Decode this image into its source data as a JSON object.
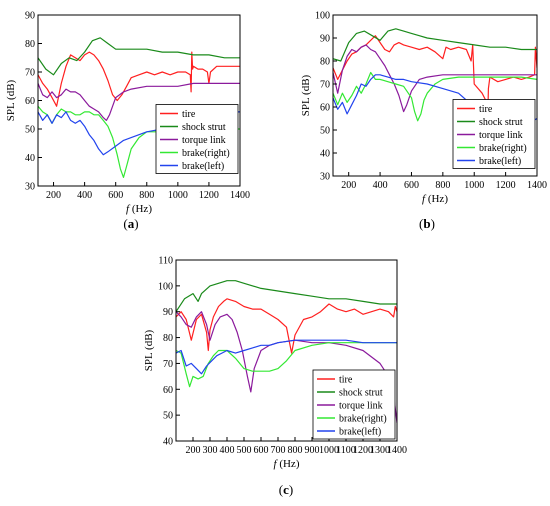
{
  "chart_data": [
    {
      "panel_label": "(a)",
      "type": "line",
      "xlabel_italic": "f",
      "xlabel_unit": " (Hz)",
      "ylabel": "SPL (dB)",
      "xlim": [
        100,
        1400
      ],
      "ylim": [
        30,
        90
      ],
      "xticks": [
        200,
        400,
        600,
        800,
        1000,
        1200,
        1400
      ],
      "yticks": [
        30,
        40,
        50,
        60,
        70,
        80,
        90
      ],
      "grid": false,
      "legend_position": "middle-right",
      "series": [
        {
          "name": "tire",
          "color": "#ff2020",
          "x": [
            100,
            130,
            160,
            190,
            220,
            250,
            280,
            310,
            340,
            370,
            400,
            430,
            460,
            490,
            520,
            550,
            580,
            610,
            640,
            670,
            700,
            750,
            800,
            850,
            900,
            950,
            1000,
            1050,
            1080,
            1085,
            1090,
            1095,
            1100,
            1130,
            1160,
            1190,
            1200,
            1210,
            1250,
            1300,
            1350,
            1400
          ],
          "y": [
            69,
            66,
            64,
            61,
            58,
            66,
            72,
            76,
            75,
            74,
            76,
            77,
            76,
            74,
            71,
            67,
            62,
            60,
            62,
            65,
            68,
            69,
            70,
            69,
            70,
            69,
            70,
            70,
            69,
            63,
            77,
            71,
            72,
            71,
            71,
            70,
            66,
            70,
            72,
            72,
            72,
            72
          ]
        },
        {
          "name": "shock strut",
          "color": "#1a8a1a",
          "x": [
            100,
            150,
            200,
            250,
            300,
            350,
            400,
            450,
            500,
            550,
            600,
            650,
            700,
            800,
            900,
            1000,
            1100,
            1200,
            1300,
            1400
          ],
          "y": [
            75,
            71,
            69,
            73,
            75,
            74,
            77,
            81,
            82,
            80,
            78,
            78,
            78,
            78,
            77,
            77,
            76,
            76,
            75,
            75
          ]
        },
        {
          "name": "torque link",
          "color": "#8b1a9c",
          "x": [
            100,
            130,
            160,
            190,
            220,
            250,
            280,
            310,
            340,
            370,
            400,
            430,
            460,
            490,
            520,
            540,
            560,
            580,
            600,
            650,
            700,
            800,
            900,
            1000,
            1100,
            1200,
            1300,
            1400
          ],
          "y": [
            66,
            62,
            61,
            63,
            61,
            62,
            64,
            63,
            63,
            62,
            60,
            58,
            57,
            56,
            54,
            53,
            55,
            58,
            61,
            63,
            64,
            65,
            65,
            65,
            66,
            66,
            66,
            66
          ]
        },
        {
          "name": "brake(right)",
          "color": "#33e833",
          "x": [
            100,
            130,
            160,
            190,
            220,
            250,
            280,
            310,
            340,
            370,
            400,
            430,
            460,
            490,
            520,
            550,
            580,
            610,
            630,
            650,
            670,
            700,
            750,
            800,
            900,
            1000,
            1100,
            1200,
            1300,
            1400
          ],
          "y": [
            58,
            56,
            55,
            52,
            55,
            57,
            56,
            56,
            55,
            55,
            56,
            56,
            55,
            55,
            53,
            51,
            47,
            41,
            36,
            33,
            37,
            43,
            47,
            49,
            49,
            49,
            49,
            49,
            50,
            50
          ]
        },
        {
          "name": "brake(left)",
          "color": "#2244ee",
          "x": [
            100,
            130,
            160,
            190,
            220,
            250,
            280,
            310,
            340,
            370,
            400,
            430,
            460,
            490,
            520,
            550,
            600,
            650,
            700,
            800,
            900,
            1000,
            1100,
            1200,
            1300,
            1400
          ],
          "y": [
            56,
            53,
            55,
            52,
            55,
            54,
            56,
            53,
            52,
            53,
            51,
            48,
            46,
            43,
            41,
            42,
            44,
            46,
            47,
            49,
            50,
            52,
            54,
            55,
            56,
            56
          ]
        }
      ]
    },
    {
      "panel_label": "(b)",
      "type": "line",
      "xlabel_italic": "f",
      "xlabel_unit": " (Hz)",
      "ylabel": "SPL (dB)",
      "xlim": [
        100,
        1400
      ],
      "ylim": [
        30,
        100
      ],
      "xticks": [
        200,
        400,
        600,
        800,
        1000,
        1200,
        1400
      ],
      "yticks": [
        30,
        40,
        50,
        60,
        70,
        80,
        90,
        100
      ],
      "grid": false,
      "legend_position": "middle-right",
      "series": [
        {
          "name": "tire",
          "color": "#ff2020",
          "x": [
            100,
            130,
            160,
            190,
            220,
            250,
            280,
            310,
            340,
            370,
            400,
            430,
            460,
            490,
            520,
            550,
            600,
            650,
            700,
            750,
            800,
            820,
            850,
            900,
            950,
            980,
            990,
            1000,
            1050,
            1080,
            1085,
            1090,
            1100,
            1150,
            1200,
            1250,
            1300,
            1350,
            1385,
            1390,
            1400
          ],
          "y": [
            77,
            72,
            76,
            80,
            83,
            84,
            86,
            87,
            89,
            91,
            88,
            85,
            84,
            87,
            88,
            87,
            86,
            85,
            86,
            84,
            81,
            86,
            85,
            86,
            85,
            80,
            87,
            70,
            66,
            62,
            52,
            68,
            73,
            71,
            72,
            73,
            72,
            73,
            74,
            86,
            77
          ]
        },
        {
          "name": "shock strut",
          "color": "#1a8a1a",
          "x": [
            100,
            150,
            200,
            250,
            300,
            350,
            400,
            450,
            500,
            550,
            600,
            650,
            700,
            800,
            900,
            1000,
            1100,
            1200,
            1300,
            1400
          ],
          "y": [
            81,
            80,
            88,
            92,
            93,
            91,
            89,
            93,
            94,
            93,
            92,
            91,
            90,
            89,
            88,
            87,
            86,
            86,
            85,
            85
          ]
        },
        {
          "name": "torque link",
          "color": "#8b1a9c",
          "x": [
            100,
            130,
            160,
            190,
            220,
            250,
            280,
            310,
            340,
            370,
            400,
            430,
            460,
            490,
            520,
            550,
            570,
            600,
            650,
            700,
            800,
            900,
            1000,
            1100,
            1200,
            1300,
            1400
          ],
          "y": [
            75,
            66,
            76,
            82,
            85,
            84,
            86,
            87,
            85,
            84,
            81,
            78,
            74,
            70,
            65,
            58,
            61,
            67,
            72,
            73,
            74,
            74,
            74,
            74,
            74,
            74,
            74
          ]
        },
        {
          "name": "brake(right)",
          "color": "#33e833",
          "x": [
            100,
            130,
            160,
            190,
            220,
            250,
            280,
            310,
            340,
            370,
            400,
            450,
            500,
            550,
            600,
            620,
            640,
            660,
            680,
            700,
            750,
            800,
            900,
            1000,
            1100,
            1200,
            1300,
            1400
          ],
          "y": [
            66,
            61,
            66,
            62,
            65,
            69,
            66,
            70,
            75,
            72,
            72,
            71,
            70,
            69,
            64,
            58,
            54,
            57,
            63,
            66,
            70,
            72,
            73,
            73,
            73,
            73,
            73,
            72
          ]
        },
        {
          "name": "brake(left)",
          "color": "#2244ee",
          "x": [
            100,
            130,
            160,
            190,
            220,
            250,
            280,
            310,
            340,
            370,
            400,
            450,
            500,
            550,
            600,
            700,
            800,
            900,
            1000,
            1100,
            1200,
            1250,
            1300,
            1350,
            1400
          ],
          "y": [
            64,
            59,
            62,
            57,
            61,
            65,
            70,
            69,
            72,
            74,
            74,
            73,
            72,
            72,
            71,
            70,
            68,
            66,
            60,
            55,
            50,
            49,
            51,
            53,
            55
          ]
        }
      ]
    },
    {
      "panel_label": "(c)",
      "type": "line",
      "xlabel_italic": "f",
      "xlabel_unit": " (Hz)",
      "ylabel": "SPL (dB)",
      "xlim": [
        100,
        1400
      ],
      "ylim": [
        40,
        110
      ],
      "xticks": [
        200,
        300,
        400,
        500,
        600,
        700,
        800,
        900,
        1000,
        1100,
        1200,
        1300,
        1400
      ],
      "yticks": [
        40,
        50,
        60,
        70,
        80,
        90,
        100,
        110
      ],
      "grid": false,
      "legend_position": "bottom-right",
      "series": [
        {
          "name": "tire",
          "color": "#ff2020",
          "x": [
            100,
            130,
            160,
            190,
            220,
            250,
            280,
            290,
            300,
            320,
            350,
            380,
            400,
            450,
            500,
            550,
            600,
            650,
            700,
            750,
            780,
            800,
            850,
            900,
            950,
            1000,
            1050,
            1100,
            1150,
            1200,
            1250,
            1300,
            1350,
            1380,
            1390,
            1400
          ],
          "y": [
            88,
            90,
            87,
            79,
            87,
            89,
            82,
            75,
            83,
            88,
            92,
            94,
            95,
            94,
            92,
            91,
            91,
            89,
            87,
            84,
            74,
            81,
            87,
            88,
            90,
            93,
            91,
            90,
            91,
            89,
            90,
            91,
            90,
            88,
            92,
            90
          ]
        },
        {
          "name": "shock strut",
          "color": "#1a8a1a",
          "x": [
            100,
            150,
            200,
            230,
            250,
            300,
            350,
            400,
            450,
            500,
            600,
            700,
            800,
            900,
            1000,
            1100,
            1200,
            1300,
            1400
          ],
          "y": [
            90,
            95,
            97,
            94,
            97,
            100,
            101,
            102,
            102,
            101,
            99,
            98,
            97,
            96,
            95,
            95,
            94,
            93,
            93
          ]
        },
        {
          "name": "torque link",
          "color": "#8b1a9c",
          "x": [
            100,
            130,
            160,
            190,
            220,
            250,
            280,
            300,
            330,
            360,
            400,
            430,
            460,
            490,
            520,
            540,
            560,
            600,
            650,
            700,
            800,
            900,
            1000,
            1100,
            1200,
            1300,
            1350,
            1380,
            1400
          ],
          "y": [
            90,
            88,
            85,
            84,
            88,
            90,
            85,
            79,
            85,
            88,
            89,
            87,
            82,
            75,
            65,
            59,
            68,
            75,
            77,
            78,
            79,
            78,
            78,
            77,
            75,
            70,
            65,
            58,
            47
          ]
        },
        {
          "name": "brake(right)",
          "color": "#33e833",
          "x": [
            100,
            130,
            160,
            180,
            200,
            230,
            260,
            290,
            320,
            350,
            400,
            450,
            500,
            550,
            600,
            650,
            700,
            750,
            800,
            900,
            1000,
            1100,
            1200,
            1300,
            1400
          ],
          "y": [
            75,
            74,
            66,
            61,
            65,
            64,
            65,
            70,
            73,
            75,
            75,
            72,
            68,
            67,
            67,
            67,
            68,
            71,
            75,
            77,
            78,
            78,
            78,
            78,
            78
          ]
        },
        {
          "name": "brake(left)",
          "color": "#2244ee",
          "x": [
            100,
            130,
            160,
            190,
            220,
            250,
            280,
            310,
            340,
            370,
            400,
            450,
            500,
            550,
            600,
            650,
            700,
            800,
            900,
            1000,
            1100,
            1200,
            1300,
            1400
          ],
          "y": [
            74,
            75,
            69,
            70,
            68,
            66,
            69,
            71,
            73,
            74,
            75,
            74,
            75,
            76,
            77,
            77,
            78,
            79,
            79,
            79,
            79,
            78,
            78,
            78
          ]
        }
      ]
    }
  ]
}
